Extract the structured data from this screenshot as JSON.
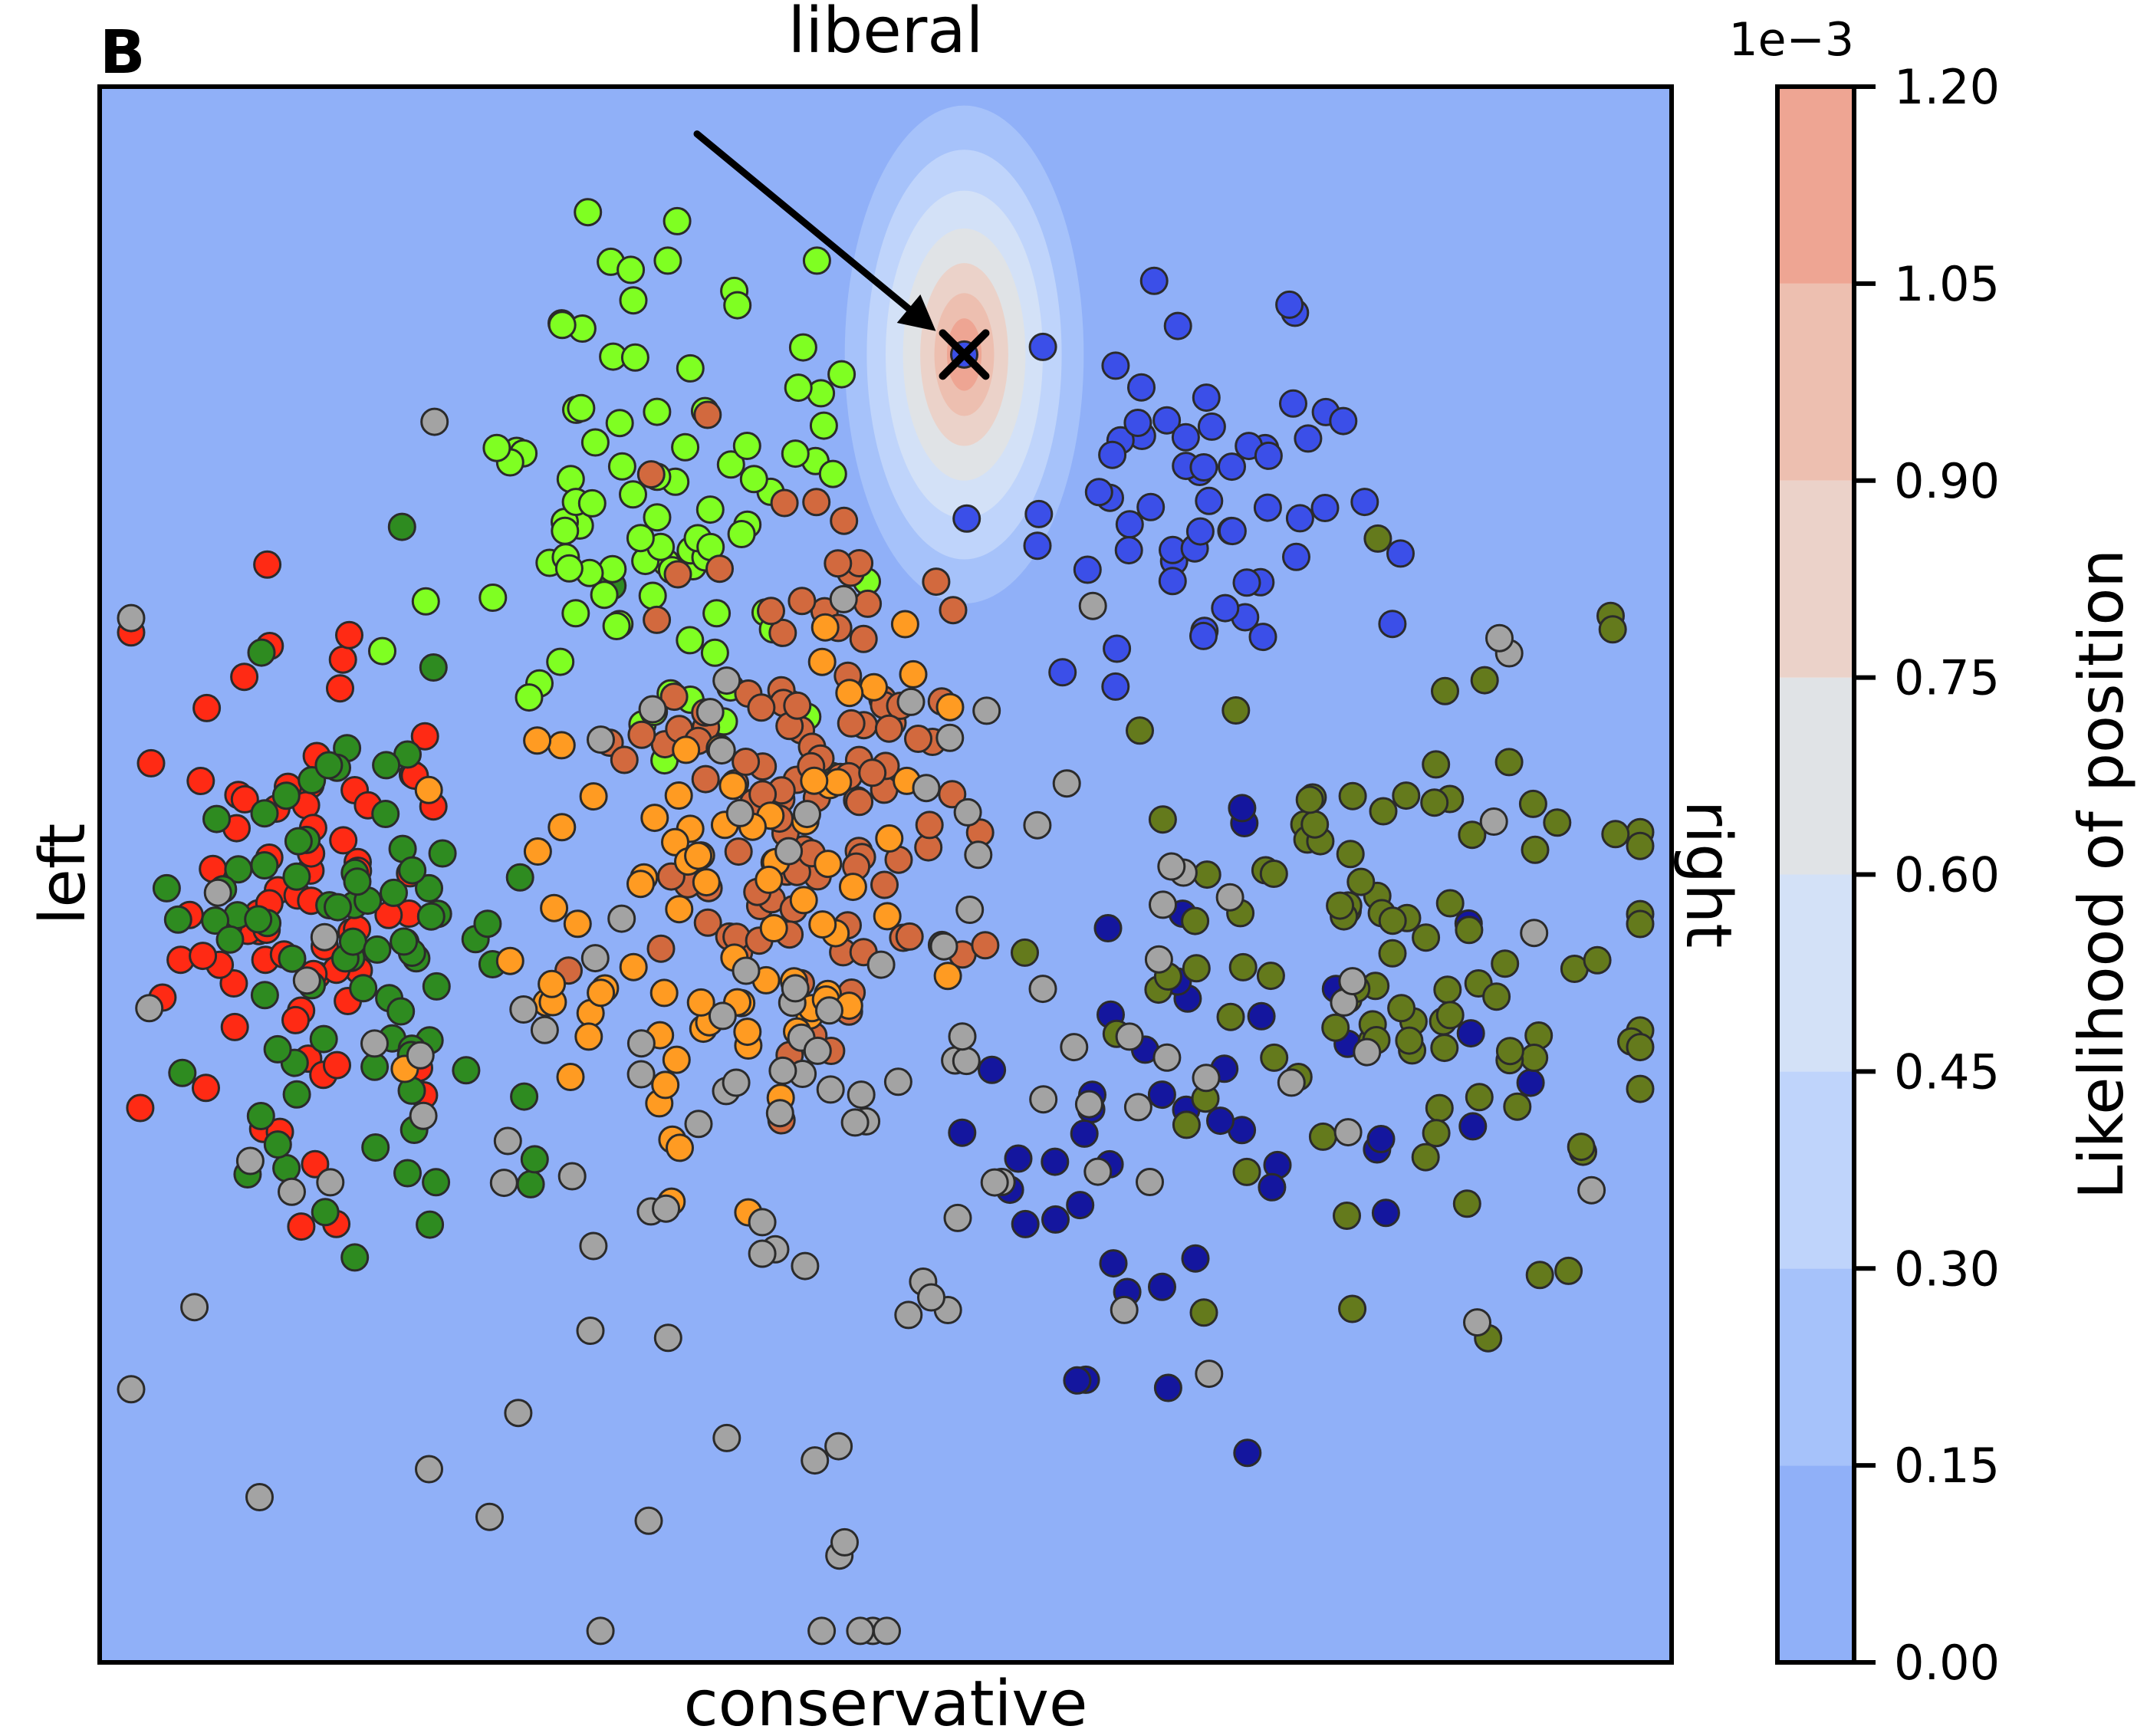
{
  "chart_data": {
    "type": "scatter",
    "panel_label": "B",
    "top_label": "liberal",
    "bottom_label": "conservative",
    "left_label": "left",
    "right_label": "right",
    "xlim": [
      0,
      100
    ],
    "ylim": [
      0,
      100
    ],
    "grid": false,
    "background_color": "#90b0f8",
    "highlight": {
      "marker": "x",
      "x": 55,
      "y": 83,
      "arrow_from": [
        38,
        97
      ],
      "density_peak": 0.0012
    },
    "density_levels": [
      {
        "min": 0.0,
        "max": 0.15,
        "color": "#90b0f8",
        "rx": 100,
        "ry": 100
      },
      {
        "min": 0.15,
        "max": 0.3,
        "color": "#a6c2fa",
        "rx": 7.6,
        "ry": 15.8
      },
      {
        "min": 0.3,
        "max": 0.45,
        "color": "#bfd4fb",
        "rx": 6.2,
        "ry": 13.0
      },
      {
        "min": 0.45,
        "max": 0.6,
        "color": "#d3e1f7",
        "rx": 5.0,
        "ry": 10.4
      },
      {
        "min": 0.6,
        "max": 0.75,
        "color": "#e0e3e6",
        "rx": 3.9,
        "ry": 8.0
      },
      {
        "min": 0.75,
        "max": 0.9,
        "color": "#ebd2c9",
        "rx": 2.8,
        "ry": 5.8
      },
      {
        "min": 0.9,
        "max": 1.05,
        "color": "#edbfb0",
        "rx": 1.9,
        "ry": 3.9
      },
      {
        "min": 1.05,
        "max": 1.2,
        "color": "#eea593",
        "rx": 1.1,
        "ry": 2.3
      }
    ],
    "colorbar": {
      "label": "Likelihood of position",
      "multiplier": "1e−3",
      "ticks": [
        "0.00",
        "0.15",
        "0.30",
        "0.45",
        "0.60",
        "0.75",
        "0.90",
        "1.05",
        "1.20"
      ]
    },
    "clusters": [
      {
        "name": "",
        "color": "#ff2a14",
        "n": 75,
        "cx": 13,
        "cy": 48,
        "sx": 5,
        "sy": 8,
        "seed": 11
      },
      {
        "name": "",
        "color": "#2e8b20",
        "n": 85,
        "cx": 16,
        "cy": 46,
        "sx": 6,
        "sy": 9,
        "seed": 12
      },
      {
        "name": "",
        "color": "#7fff22",
        "n": 95,
        "cx": 36,
        "cy": 73,
        "sx": 6,
        "sy": 9,
        "seed": 13
      },
      {
        "name": "",
        "color": "#d2693e",
        "n": 115,
        "cx": 45,
        "cy": 55,
        "sx": 6,
        "sy": 8,
        "seed": 14
      },
      {
        "name": "",
        "color": "#ff9b22",
        "n": 85,
        "cx": 39,
        "cy": 47,
        "sx": 8,
        "sy": 8,
        "seed": 15
      },
      {
        "name": "",
        "color": "#3b4fe8",
        "n": 60,
        "cx": 69,
        "cy": 74,
        "sx": 7,
        "sy": 6,
        "seed": 16
      },
      {
        "name": "",
        "color": "#14169e",
        "n": 45,
        "cx": 70,
        "cy": 35,
        "sx": 9,
        "sy": 8,
        "seed": 17
      },
      {
        "name": "",
        "color": "#647a1c",
        "n": 105,
        "cx": 83,
        "cy": 45,
        "sx": 9,
        "sy": 9,
        "seed": 18
      },
      {
        "name": "",
        "color": "#a3a3a3",
        "n": 125,
        "cx": 50,
        "cy": 38,
        "sx": 24,
        "sy": 18,
        "seed": 19
      }
    ]
  }
}
